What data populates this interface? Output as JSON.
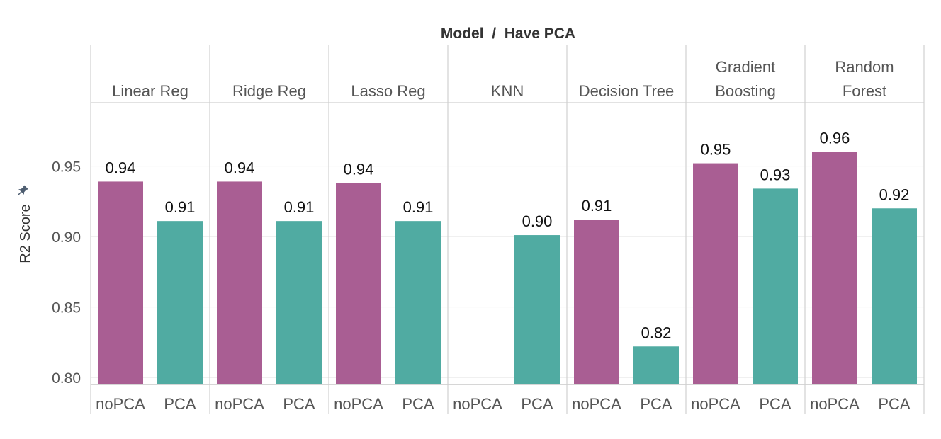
{
  "chart_data": {
    "type": "bar",
    "title": "Model  /  Have PCA",
    "ylabel": "R2 Score",
    "xlabel": "",
    "ylim": [
      0.795,
      0.995
    ],
    "yticks": [
      0.8,
      0.85,
      0.9,
      0.95
    ],
    "ytick_labels": [
      "0.80",
      "0.85",
      "0.90",
      "0.95"
    ],
    "grid": true,
    "categories": [
      "noPCA",
      "PCA"
    ],
    "groups": [
      {
        "label_lines": [
          "Linear Reg"
        ],
        "values": [
          0.939,
          0.911
        ],
        "labels": [
          "0.94",
          "0.91"
        ]
      },
      {
        "label_lines": [
          "Ridge Reg"
        ],
        "values": [
          0.939,
          0.911
        ],
        "labels": [
          "0.94",
          "0.91"
        ]
      },
      {
        "label_lines": [
          "Lasso Reg"
        ],
        "values": [
          0.938,
          0.911
        ],
        "labels": [
          "0.94",
          "0.91"
        ]
      },
      {
        "label_lines": [
          "KNN"
        ],
        "values": [
          null,
          0.901
        ],
        "labels": [
          "",
          "0.90"
        ]
      },
      {
        "label_lines": [
          "Decision Tree"
        ],
        "values": [
          0.912,
          0.822
        ],
        "labels": [
          "0.91",
          "0.82"
        ]
      },
      {
        "label_lines": [
          "Gradient",
          "Boosting"
        ],
        "values": [
          0.952,
          0.934
        ],
        "labels": [
          "0.95",
          "0.93"
        ]
      },
      {
        "label_lines": [
          "Random",
          "Forest"
        ],
        "values": [
          0.96,
          0.92
        ],
        "labels": [
          "0.96",
          "0.92"
        ]
      }
    ],
    "colors": {
      "noPCA": "#A95E93",
      "PCA": "#50ABA2"
    }
  },
  "icons": {
    "axis_pin": "pin-icon"
  }
}
